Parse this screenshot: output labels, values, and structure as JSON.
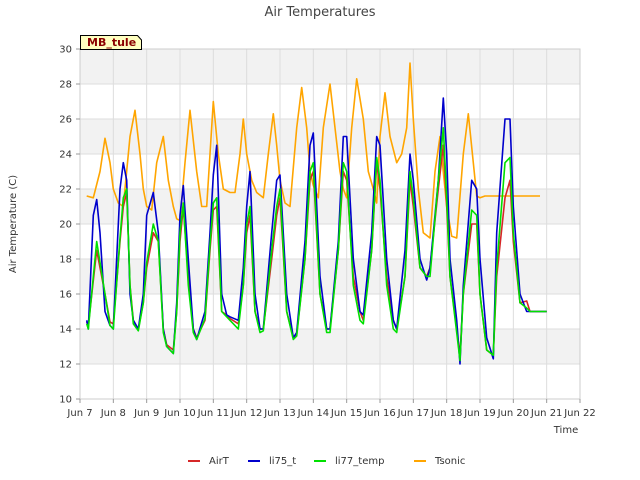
{
  "chart_data": {
    "type": "line",
    "title": "Air Temperatures",
    "xlabel": "Time",
    "ylabel": "Air Temperature (C)",
    "site_label": "MB_tule",
    "xlim": [
      7,
      22
    ],
    "ylim": [
      10,
      30
    ],
    "x_ticks": [
      {
        "value": 7,
        "label": "Jun 7"
      },
      {
        "value": 8,
        "label": "Jun 8"
      },
      {
        "value": 9,
        "label": "Jun 9"
      },
      {
        "value": 10,
        "label": "Jun 10"
      },
      {
        "value": 11,
        "label": "Jun 11"
      },
      {
        "value": 12,
        "label": "Jun 12"
      },
      {
        "value": 13,
        "label": "Jun 13"
      },
      {
        "value": 14,
        "label": "Jun 14"
      },
      {
        "value": 15,
        "label": "Jun 15"
      },
      {
        "value": 16,
        "label": "Jun 16"
      },
      {
        "value": 17,
        "label": "Jun 17"
      },
      {
        "value": 18,
        "label": "Jun 18"
      },
      {
        "value": 19,
        "label": "Jun 19"
      },
      {
        "value": 20,
        "label": "Jun 20"
      },
      {
        "value": 21,
        "label": "Jun 21"
      },
      {
        "value": 22,
        "label": "Jun 22"
      }
    ],
    "y_ticks": [
      10,
      12,
      14,
      16,
      18,
      20,
      22,
      24,
      26,
      28,
      30
    ],
    "grid": true,
    "legend_position": "bottom",
    "series": [
      {
        "name": "AirT",
        "color": "#d62728",
        "x": [
          7.2,
          7.25,
          7.5,
          7.75,
          7.9,
          8.0,
          8.2,
          8.3,
          8.4,
          8.5,
          8.6,
          8.75,
          8.9,
          9.0,
          9.2,
          9.35,
          9.5,
          9.6,
          9.8,
          9.9,
          10.0,
          10.1,
          10.25,
          10.4,
          10.5,
          10.75,
          10.9,
          11.0,
          11.1,
          11.25,
          11.4,
          11.5,
          11.75,
          11.9,
          12.0,
          12.1,
          12.25,
          12.4,
          12.5,
          12.75,
          12.9,
          13.0,
          13.2,
          13.4,
          13.5,
          13.75,
          13.9,
          14.0,
          14.2,
          14.4,
          14.5,
          14.75,
          14.9,
          15.0,
          15.2,
          15.4,
          15.5,
          15.75,
          15.9,
          16.0,
          16.2,
          16.4,
          16.5,
          16.75,
          16.9,
          17.0,
          17.2,
          17.4,
          17.5,
          17.75,
          17.9,
          18.0,
          18.1,
          18.3,
          18.4,
          18.5,
          18.75,
          18.9,
          19.0,
          19.2,
          19.4,
          19.5,
          19.75,
          19.9,
          20.0,
          20.2,
          20.4,
          20.5,
          20.7,
          20.85,
          21.0
        ],
        "y": [
          14.4,
          14.2,
          18.5,
          16.0,
          14.4,
          14.3,
          19.0,
          21.0,
          21.8,
          16.5,
          14.5,
          14.0,
          15.5,
          17.5,
          19.5,
          19.0,
          14.0,
          13.1,
          12.8,
          15.0,
          19.0,
          21.0,
          17.0,
          14.0,
          13.5,
          14.5,
          18.5,
          20.8,
          21.0,
          15.0,
          14.8,
          14.6,
          14.3,
          16.5,
          19.5,
          20.5,
          15.0,
          14.0,
          14.0,
          18.0,
          20.5,
          21.5,
          15.0,
          13.5,
          13.7,
          18.0,
          22.5,
          23.0,
          16.0,
          14.0,
          14.0,
          18.5,
          23.0,
          22.5,
          17.0,
          15.0,
          14.5,
          18.5,
          23.5,
          22.0,
          17.0,
          14.5,
          14.0,
          17.0,
          22.5,
          21.0,
          17.5,
          17.0,
          17.5,
          22.0,
          24.5,
          21.0,
          17.0,
          14.0,
          12.5,
          16.0,
          20.0,
          20.0,
          16.0,
          12.8,
          12.5,
          17.0,
          21.5,
          22.5,
          19.0,
          15.5,
          15.6,
          15,
          15,
          15,
          15
        ]
      },
      {
        "name": "li75_t",
        "color": "#0000cc",
        "x": [
          7.2,
          7.25,
          7.4,
          7.5,
          7.6,
          7.75,
          7.9,
          8.0,
          8.2,
          8.3,
          8.4,
          8.5,
          8.6,
          8.75,
          8.9,
          9.0,
          9.2,
          9.35,
          9.5,
          9.6,
          9.8,
          9.9,
          10.0,
          10.1,
          10.25,
          10.4,
          10.5,
          10.75,
          10.9,
          11.0,
          11.1,
          11.25,
          11.4,
          11.5,
          11.75,
          11.9,
          12.0,
          12.1,
          12.25,
          12.4,
          12.5,
          12.75,
          12.9,
          13.0,
          13.2,
          13.4,
          13.5,
          13.75,
          13.9,
          14.0,
          14.2,
          14.4,
          14.5,
          14.75,
          14.9,
          15.0,
          15.2,
          15.4,
          15.5,
          15.75,
          15.9,
          16.0,
          16.2,
          16.4,
          16.5,
          16.75,
          16.9,
          17.0,
          17.2,
          17.4,
          17.5,
          17.75,
          17.9,
          18.0,
          18.1,
          18.3,
          18.4,
          18.5,
          18.75,
          18.9,
          19.0,
          19.2,
          19.4,
          19.5,
          19.75,
          19.9,
          20.0,
          20.2,
          20.4,
          20.5,
          20.7,
          20.85,
          21.0
        ],
        "y": [
          14.5,
          14.0,
          20.5,
          21.4,
          19.5,
          15.0,
          14.2,
          14.0,
          22.0,
          23.5,
          22.5,
          16.0,
          14.5,
          14.0,
          16.0,
          20.5,
          21.8,
          19.5,
          14.0,
          13.0,
          12.6,
          15.5,
          20.5,
          22.2,
          18.0,
          14.0,
          13.4,
          15.0,
          19.5,
          22.8,
          24.5,
          16.0,
          14.8,
          14.7,
          14.5,
          17.5,
          21.0,
          23.0,
          16.0,
          14.0,
          14.0,
          19.5,
          22.5,
          22.8,
          16.0,
          13.5,
          13.8,
          19.0,
          24.5,
          25.2,
          17.0,
          14.0,
          14.0,
          19.0,
          25.0,
          25.0,
          18.0,
          15.0,
          14.8,
          19.5,
          25.0,
          24.5,
          18.0,
          14.5,
          14.0,
          18.5,
          24.0,
          22.5,
          18.0,
          16.8,
          17.5,
          22.5,
          27.2,
          24.0,
          18.0,
          14.5,
          12.0,
          16.5,
          22.5,
          22.0,
          18.0,
          13.5,
          12.3,
          19.5,
          26.0,
          26.0,
          21.0,
          16.0,
          15.0,
          15,
          15,
          15,
          15
        ]
      },
      {
        "name": "li77_temp",
        "color": "#00e000",
        "x": [
          7.2,
          7.25,
          7.5,
          7.75,
          7.9,
          8.0,
          8.2,
          8.3,
          8.4,
          8.5,
          8.6,
          8.75,
          8.9,
          9.0,
          9.2,
          9.35,
          9.5,
          9.6,
          9.8,
          9.9,
          10.0,
          10.1,
          10.25,
          10.4,
          10.5,
          10.75,
          10.9,
          11.0,
          11.1,
          11.25,
          11.4,
          11.5,
          11.75,
          11.9,
          12.0,
          12.1,
          12.25,
          12.4,
          12.5,
          12.75,
          12.9,
          13.0,
          13.2,
          13.4,
          13.5,
          13.75,
          13.9,
          14.0,
          14.2,
          14.4,
          14.5,
          14.75,
          14.9,
          15.0,
          15.2,
          15.4,
          15.5,
          15.75,
          15.9,
          16.0,
          16.2,
          16.4,
          16.5,
          16.75,
          16.9,
          17.0,
          17.2,
          17.4,
          17.5,
          17.75,
          17.9,
          18.0,
          18.1,
          18.3,
          18.4,
          18.5,
          18.75,
          18.9,
          19.0,
          19.2,
          19.4,
          19.5,
          19.75,
          19.9,
          20.0,
          20.2,
          20.4,
          20.5,
          20.7,
          20.85,
          21.0
        ],
        "y": [
          14.3,
          14.0,
          19.0,
          16.0,
          14.2,
          14.0,
          19.2,
          21.5,
          22.0,
          16.5,
          14.3,
          13.9,
          15.5,
          17.8,
          20.0,
          19.0,
          13.8,
          13.0,
          12.6,
          15.0,
          19.5,
          21.2,
          16.5,
          13.8,
          13.4,
          14.6,
          18.8,
          21.2,
          21.5,
          15.0,
          14.7,
          14.5,
          14.0,
          16.5,
          20.0,
          21.0,
          15.0,
          13.8,
          13.9,
          18.5,
          21.0,
          22.0,
          15.0,
          13.4,
          13.6,
          18.0,
          23.0,
          23.5,
          16.0,
          13.8,
          13.8,
          18.5,
          23.5,
          23.0,
          16.5,
          14.5,
          14.3,
          18.5,
          23.8,
          22.5,
          16.5,
          14.0,
          13.8,
          17.0,
          23.0,
          21.5,
          17.5,
          17.0,
          17.0,
          22.5,
          25.5,
          21.5,
          17.0,
          13.8,
          12.2,
          16.0,
          20.8,
          20.5,
          16.0,
          12.8,
          12.5,
          17.5,
          23.5,
          23.8,
          19.5,
          15.5,
          15.2,
          15,
          15,
          15,
          15
        ]
      },
      {
        "name": "Tsonic",
        "color": "#ffa500",
        "x": [
          7.2,
          7.4,
          7.6,
          7.75,
          7.9,
          8.0,
          8.15,
          8.3,
          8.5,
          8.65,
          8.8,
          8.9,
          9.0,
          9.15,
          9.3,
          9.5,
          9.65,
          9.8,
          9.9,
          10.0,
          10.15,
          10.3,
          10.5,
          10.65,
          10.8,
          10.9,
          11.0,
          11.15,
          11.3,
          11.5,
          11.65,
          11.8,
          11.9,
          12.0,
          12.15,
          12.3,
          12.5,
          12.65,
          12.8,
          12.9,
          13.0,
          13.15,
          13.3,
          13.5,
          13.65,
          13.8,
          13.9,
          14.0,
          14.15,
          14.3,
          14.5,
          14.65,
          14.8,
          14.9,
          15.0,
          15.15,
          15.3,
          15.5,
          15.65,
          15.8,
          15.9,
          16.0,
          16.15,
          16.3,
          16.5,
          16.65,
          16.8,
          16.9,
          17.0,
          17.15,
          17.3,
          17.5,
          17.65,
          17.8,
          17.9,
          18.0,
          18.15,
          18.3,
          18.5,
          18.65,
          18.8,
          18.9,
          19.0,
          19.15,
          19.3,
          19.5,
          19.65,
          19.8,
          19.9,
          20.0,
          20.15,
          20.3,
          20.5,
          20.65,
          20.8
        ],
        "y": [
          21.6,
          21.5,
          23.0,
          24.9,
          23.5,
          22.0,
          21.2,
          21.0,
          25.0,
          26.5,
          24.0,
          22.0,
          21.0,
          20.8,
          23.5,
          25.0,
          22.5,
          21.0,
          20.3,
          20.2,
          23.5,
          26.5,
          23.0,
          21.0,
          21.0,
          24.0,
          27.0,
          24.0,
          22.0,
          21.8,
          21.8,
          24.0,
          26.0,
          24.0,
          22.5,
          21.8,
          21.5,
          24.0,
          26.3,
          24.5,
          22.5,
          21.2,
          21.0,
          25.5,
          27.8,
          25.5,
          23.0,
          22.2,
          21.5,
          25.5,
          28.0,
          25.5,
          23.0,
          22.0,
          21.5,
          25.5,
          28.3,
          26.0,
          23.0,
          22.0,
          21.2,
          25.0,
          27.5,
          25.0,
          23.5,
          24.0,
          25.5,
          29.2,
          26.0,
          22.0,
          19.5,
          19.2,
          23.0,
          25.0,
          23.0,
          21.0,
          19.3,
          19.2,
          24.0,
          26.3,
          23.5,
          21.6,
          21.5,
          21.6,
          21.6,
          21.6,
          21.6,
          21.6,
          21.6,
          21.6,
          21.6,
          21.6,
          21.6,
          21.6,
          21.6
        ]
      }
    ]
  }
}
